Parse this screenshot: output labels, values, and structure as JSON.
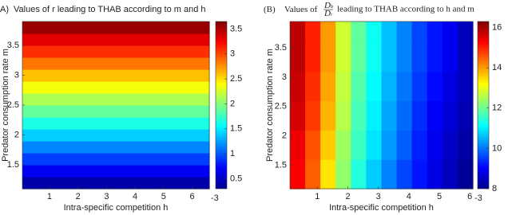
{
  "chart_data": [
    {
      "type": "heatmap",
      "panel": "A)",
      "title": "Values of r leading to THAB according to m and h",
      "xlabel": "Intra-specific competition h",
      "x_exponent": "-3",
      "ylabel": "Predator consumption rate m",
      "colormap": "jet",
      "xlim": [
        0.05,
        6.6
      ],
      "xticks": [
        1,
        2,
        3,
        4,
        5,
        6
      ],
      "ylim": [
        1.1,
        3.9
      ],
      "yticks": [
        1.5,
        2,
        2.5,
        3,
        3.5
      ],
      "clim": [
        0.3,
        3.65
      ],
      "cticks": [
        0.5,
        1,
        1.5,
        2,
        2.5,
        3,
        3.5
      ],
      "x_edges": [
        0.05,
        6.6
      ],
      "y_edges": [
        1.1,
        1.3,
        1.5,
        1.7,
        1.9,
        2.1,
        2.3,
        2.5,
        2.7,
        2.9,
        3.1,
        3.3,
        3.5,
        3.7,
        3.9
      ],
      "z": [
        [
          0.44
        ],
        [
          0.68
        ],
        [
          0.92
        ],
        [
          1.16
        ],
        [
          1.4
        ],
        [
          1.64
        ],
        [
          1.88
        ],
        [
          2.12
        ],
        [
          2.36
        ],
        [
          2.6
        ],
        [
          2.84
        ],
        [
          3.08
        ],
        [
          3.32
        ],
        [
          3.56
        ]
      ]
    },
    {
      "type": "heatmap",
      "panel": "(B)",
      "title": "Values of",
      "title_numerator": "D",
      "title_numerator_sub": "b",
      "title_denominator": "D",
      "title_denominator_sub": "r",
      "title_end": "leading to THAB according to h and m",
      "xlabel": "Intra-specific competition h",
      "x_exponent": "-3",
      "ylabel": "Predator consumption rate m",
      "colormap": "jet",
      "xlim": [
        0.1,
        6.1
      ],
      "xticks": [
        1,
        2,
        3,
        4,
        5,
        6
      ],
      "ylim": [
        1.1,
        3.95
      ],
      "yticks": [
        1.5,
        2,
        2.5,
        3,
        3.5
      ],
      "clim": [
        8,
        16.3
      ],
      "cticks": [
        8,
        10,
        12,
        14,
        16
      ],
      "x_edges": [
        0.1,
        0.6,
        1.1,
        1.6,
        2.1,
        2.6,
        3.1,
        3.6,
        4.1,
        4.6,
        5.1,
        5.6,
        6.1
      ],
      "y_edges": [
        1.1,
        1.6,
        2.1,
        2.6,
        3.1,
        3.6,
        3.95
      ],
      "z": [
        [
          15.3,
          14.5,
          13.4,
          12.3,
          11.4,
          10.7,
          10.1,
          9.6,
          9.2,
          8.8,
          8.5,
          8.2
        ],
        [
          15.4,
          14.6,
          13.6,
          12.4,
          11.6,
          10.9,
          10.3,
          9.8,
          9.3,
          8.9,
          8.6,
          8.3
        ],
        [
          15.6,
          14.8,
          13.8,
          12.6,
          11.7,
          11.0,
          10.4,
          9.9,
          9.4,
          9.0,
          8.7,
          8.4
        ],
        [
          15.7,
          14.9,
          13.9,
          12.7,
          11.8,
          11.1,
          10.5,
          10.0,
          9.5,
          9.1,
          8.8,
          8.5
        ],
        [
          15.8,
          15.0,
          14.0,
          12.8,
          11.9,
          11.2,
          10.6,
          10.1,
          9.6,
          9.2,
          8.9,
          8.5
        ],
        [
          15.8,
          15.0,
          14.0,
          12.8,
          11.9,
          11.2,
          10.6,
          10.1,
          9.6,
          9.2,
          8.9,
          8.5
        ]
      ]
    }
  ]
}
